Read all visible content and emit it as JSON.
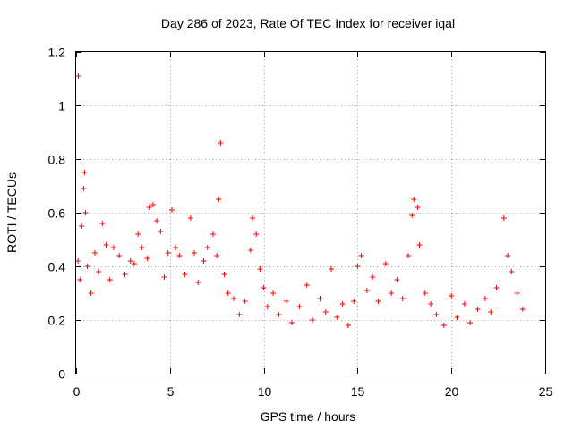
{
  "chart_data": {
    "type": "scatter",
    "title": "Day 286 of 2023, Rate Of TEC Index for receiver iqal",
    "xlabel": "GPS time / hours",
    "ylabel": "ROTI / TECUs",
    "xlim": [
      0,
      25
    ],
    "ylim": [
      0,
      1.2
    ],
    "xticks": [
      0,
      5,
      10,
      15,
      20,
      25
    ],
    "xtick_labels": [
      "0",
      "5",
      "10",
      "15",
      "20",
      "25"
    ],
    "yticks": [
      0,
      0.2,
      0.4,
      0.6,
      0.8,
      1.0,
      1.2
    ],
    "ytick_labels": [
      "0",
      "0.2",
      "0.4",
      "0.6",
      "0.8",
      "1",
      "1.2"
    ],
    "grid": true,
    "marker": "+",
    "color": "#ff0000",
    "series": [
      {
        "name": "ROTI",
        "points": [
          [
            0.12,
            1.11
          ],
          [
            0.45,
            0.75
          ],
          [
            0.4,
            0.69
          ],
          [
            0.5,
            0.6
          ],
          [
            0.3,
            0.55
          ],
          [
            0.1,
            0.42
          ],
          [
            0.2,
            0.35
          ],
          [
            0.6,
            0.4
          ],
          [
            0.8,
            0.3
          ],
          [
            1.0,
            0.45
          ],
          [
            1.2,
            0.38
          ],
          [
            1.4,
            0.56
          ],
          [
            1.6,
            0.48
          ],
          [
            1.8,
            0.35
          ],
          [
            2.0,
            0.47
          ],
          [
            2.3,
            0.44
          ],
          [
            2.6,
            0.37
          ],
          [
            2.9,
            0.42
          ],
          [
            3.1,
            0.41
          ],
          [
            3.3,
            0.52
          ],
          [
            3.5,
            0.47
          ],
          [
            3.8,
            0.43
          ],
          [
            3.9,
            0.62
          ],
          [
            4.1,
            0.63
          ],
          [
            4.3,
            0.57
          ],
          [
            4.5,
            0.53
          ],
          [
            4.7,
            0.36
          ],
          [
            4.9,
            0.45
          ],
          [
            5.1,
            0.61
          ],
          [
            5.3,
            0.47
          ],
          [
            5.5,
            0.44
          ],
          [
            5.8,
            0.37
          ],
          [
            6.1,
            0.58
          ],
          [
            6.3,
            0.45
          ],
          [
            6.5,
            0.34
          ],
          [
            6.8,
            0.42
          ],
          [
            7.0,
            0.47
          ],
          [
            7.3,
            0.52
          ],
          [
            7.5,
            0.44
          ],
          [
            7.6,
            0.65
          ],
          [
            7.7,
            0.86
          ],
          [
            7.9,
            0.37
          ],
          [
            8.1,
            0.3
          ],
          [
            8.4,
            0.28
          ],
          [
            8.7,
            0.22
          ],
          [
            9.0,
            0.27
          ],
          [
            9.3,
            0.46
          ],
          [
            9.4,
            0.58
          ],
          [
            9.6,
            0.52
          ],
          [
            9.8,
            0.39
          ],
          [
            10.0,
            0.32
          ],
          [
            10.2,
            0.25
          ],
          [
            10.5,
            0.3
          ],
          [
            10.8,
            0.22
          ],
          [
            11.2,
            0.27
          ],
          [
            11.5,
            0.19
          ],
          [
            11.9,
            0.25
          ],
          [
            12.3,
            0.33
          ],
          [
            12.6,
            0.2
          ],
          [
            13.0,
            0.28
          ],
          [
            13.3,
            0.23
          ],
          [
            13.6,
            0.39
          ],
          [
            13.9,
            0.21
          ],
          [
            14.2,
            0.26
          ],
          [
            14.5,
            0.18
          ],
          [
            14.8,
            0.27
          ],
          [
            15.0,
            0.4
          ],
          [
            15.2,
            0.44
          ],
          [
            15.5,
            0.31
          ],
          [
            15.8,
            0.36
          ],
          [
            16.1,
            0.27
          ],
          [
            16.5,
            0.41
          ],
          [
            16.8,
            0.3
          ],
          [
            17.1,
            0.35
          ],
          [
            17.4,
            0.28
          ],
          [
            17.7,
            0.44
          ],
          [
            17.9,
            0.59
          ],
          [
            18.0,
            0.65
          ],
          [
            18.2,
            0.62
          ],
          [
            18.3,
            0.48
          ],
          [
            18.6,
            0.3
          ],
          [
            18.9,
            0.26
          ],
          [
            19.2,
            0.22
          ],
          [
            19.6,
            0.18
          ],
          [
            20.0,
            0.29
          ],
          [
            20.3,
            0.21
          ],
          [
            20.7,
            0.26
          ],
          [
            21.0,
            0.19
          ],
          [
            21.4,
            0.24
          ],
          [
            21.8,
            0.28
          ],
          [
            22.1,
            0.23
          ],
          [
            22.4,
            0.32
          ],
          [
            22.8,
            0.58
          ],
          [
            23.0,
            0.44
          ],
          [
            23.2,
            0.38
          ],
          [
            23.5,
            0.3
          ],
          [
            23.8,
            0.24
          ]
        ]
      }
    ]
  }
}
